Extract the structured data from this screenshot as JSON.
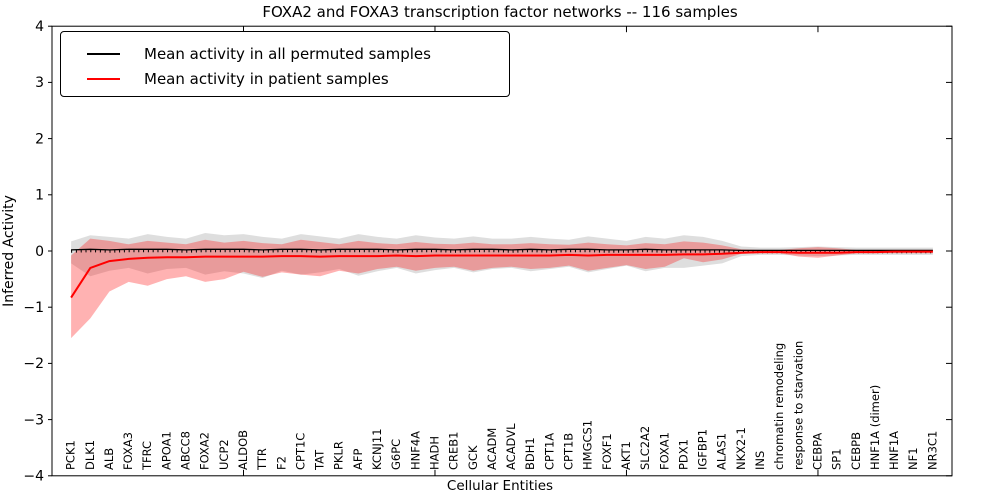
{
  "chart_data": {
    "type": "line",
    "title": "FOXA2 and FOXA3 transcription factor networks -- 116 samples",
    "xlabel": "Cellular Entities",
    "ylabel": "Inferred Activity",
    "ylim": [
      -4,
      4
    ],
    "xlim": [
      0,
      47
    ],
    "grid": false,
    "yticks": {
      "values": [
        4,
        3,
        2,
        1,
        0,
        -1,
        -2,
        -3,
        -4
      ],
      "labels": [
        "4",
        "3",
        "2",
        "1",
        "0",
        "−1",
        "−2",
        "−3",
        "−4"
      ]
    },
    "xticks_major": [
      10,
      20,
      30,
      40
    ],
    "categories": [
      "PCK1",
      "DLK1",
      "ALB",
      "FOXA3",
      "TFRC",
      "APOA1",
      "ABCC8",
      "FOXA2",
      "UCP2",
      "ALDOB",
      "TTR",
      "F2",
      "CPT1C",
      "TAT",
      "PKLR",
      "AFP",
      "KCNJ11",
      "G6PC",
      "HNF4A",
      "HADH",
      "CREB1",
      "GCK",
      "ACADM",
      "ACADVL",
      "BDH1",
      "CPT1A",
      "CPT1B",
      "HMGCS1",
      "FOXF1",
      "AKT1",
      "SLC2A2",
      "FOXA1",
      "PDX1",
      "IGFBP1",
      "ALAS1",
      "NKX2-1",
      "INS",
      "chromatin remodeling",
      "response to starvation",
      "CEBPA",
      "SP1",
      "CEBPB",
      "HNF1A (dimer)",
      "HNF1A",
      "NF1",
      "NR3C1"
    ],
    "series": [
      {
        "name": "Mean activity in all permuted samples",
        "color": "#000000",
        "values": [
          0.02,
          0.03,
          0.02,
          0.03,
          0.03,
          0.03,
          0.02,
          0.03,
          0.03,
          0.03,
          0.02,
          0.03,
          0.03,
          0.02,
          0.03,
          0.03,
          0.03,
          0.02,
          0.03,
          0.03,
          0.02,
          0.03,
          0.03,
          0.02,
          0.03,
          0.02,
          0.03,
          0.03,
          0.02,
          0.02,
          0.03,
          0.02,
          0.02,
          0.02,
          0.02,
          0.01,
          0.01,
          0.01,
          0.01,
          0.01,
          0.01,
          0.01,
          0.01,
          0.01,
          0.01,
          0.01
        ]
      },
      {
        "name": "Mean activity in patient samples",
        "color": "#ff0000",
        "values": [
          -0.83,
          -0.3,
          -0.18,
          -0.14,
          -0.12,
          -0.11,
          -0.11,
          -0.1,
          -0.1,
          -0.1,
          -0.1,
          -0.09,
          -0.09,
          -0.1,
          -0.09,
          -0.09,
          -0.09,
          -0.08,
          -0.09,
          -0.08,
          -0.08,
          -0.08,
          -0.08,
          -0.08,
          -0.08,
          -0.08,
          -0.07,
          -0.08,
          -0.07,
          -0.07,
          -0.07,
          -0.07,
          -0.06,
          -0.06,
          -0.05,
          -0.03,
          -0.02,
          -0.02,
          -0.03,
          -0.03,
          -0.03,
          -0.02,
          -0.02,
          -0.01,
          -0.01,
          -0.01
        ]
      }
    ],
    "bands": [
      {
        "name": "permuted-std-band",
        "color": "rgba(0,0,0,0.13)",
        "upper": [
          0.17,
          0.28,
          0.25,
          0.22,
          0.3,
          0.25,
          0.22,
          0.32,
          0.28,
          0.3,
          0.25,
          0.22,
          0.3,
          0.26,
          0.22,
          0.3,
          0.25,
          0.22,
          0.28,
          0.24,
          0.22,
          0.26,
          0.22,
          0.22,
          0.25,
          0.22,
          0.2,
          0.26,
          0.22,
          0.18,
          0.25,
          0.22,
          0.28,
          0.25,
          0.18,
          0.08,
          0.06,
          0.06,
          0.07,
          0.08,
          0.07,
          0.06,
          0.06,
          0.06,
          0.06,
          0.06
        ],
        "lower": [
          -0.22,
          -0.45,
          -0.35,
          -0.3,
          -0.4,
          -0.32,
          -0.3,
          -0.42,
          -0.36,
          -0.4,
          -0.48,
          -0.35,
          -0.42,
          -0.38,
          -0.32,
          -0.44,
          -0.36,
          -0.3,
          -0.4,
          -0.34,
          -0.3,
          -0.38,
          -0.32,
          -0.3,
          -0.36,
          -0.32,
          -0.28,
          -0.38,
          -0.32,
          -0.26,
          -0.36,
          -0.3,
          -0.3,
          -0.26,
          -0.22,
          -0.09,
          -0.07,
          -0.07,
          -0.08,
          -0.09,
          -0.08,
          -0.07,
          -0.07,
          -0.07,
          -0.07,
          -0.07
        ]
      },
      {
        "name": "patient-std-band",
        "color": "rgba(255,0,0,0.30)",
        "upper": [
          -0.08,
          0.22,
          0.18,
          0.12,
          0.18,
          0.15,
          0.12,
          0.2,
          0.15,
          0.18,
          0.14,
          0.12,
          0.2,
          0.16,
          0.12,
          0.18,
          0.14,
          0.12,
          0.16,
          0.13,
          0.12,
          0.15,
          0.12,
          0.12,
          0.14,
          0.12,
          0.11,
          0.15,
          0.12,
          0.1,
          0.14,
          0.12,
          0.17,
          0.15,
          0.1,
          0.03,
          0.02,
          0.02,
          0.05,
          0.07,
          0.05,
          0.02,
          0.02,
          0.02,
          0.02,
          0.02
        ],
        "lower": [
          -1.55,
          -1.2,
          -0.72,
          -0.55,
          -0.62,
          -0.5,
          -0.45,
          -0.55,
          -0.5,
          -0.37,
          -0.46,
          -0.38,
          -0.42,
          -0.45,
          -0.35,
          -0.4,
          -0.32,
          -0.28,
          -0.35,
          -0.3,
          -0.28,
          -0.35,
          -0.3,
          -0.28,
          -0.32,
          -0.3,
          -0.26,
          -0.35,
          -0.3,
          -0.25,
          -0.32,
          -0.28,
          -0.13,
          -0.2,
          -0.15,
          -0.05,
          -0.04,
          -0.04,
          -0.1,
          -0.12,
          -0.08,
          -0.04,
          -0.04,
          -0.04,
          -0.04,
          -0.04
        ]
      }
    ],
    "legend": {
      "position": "upper left",
      "entries": [
        {
          "label": "Mean activity in all permuted samples",
          "color": "#000000"
        },
        {
          "label": "Mean activity in patient samples",
          "color": "#ff0000"
        }
      ]
    }
  }
}
